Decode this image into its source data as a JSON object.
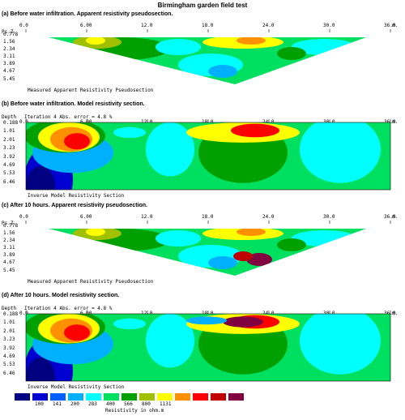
{
  "header": {
    "title": "Birmingham garden field test"
  },
  "axis_units": "m.",
  "x_ticks": [
    "0.0",
    "6.00",
    "12.0",
    "18.0",
    "24.0",
    "30.0",
    "36.0"
  ],
  "panels": [
    {
      "title": "(a) Before water infiltration. Apparent resistivity pseudosection.",
      "ylabel": "Ps.Z",
      "depth_ticks": [
        "0.778",
        "1.56",
        "2.34",
        "3.11",
        "3.89",
        "4.67",
        "5.45"
      ],
      "caption": "Measured Apparent Resistivity Pseudosection",
      "kind": "pseudo"
    },
    {
      "title": "(b) Before water infiltration. Model resistivity section.",
      "ylabel": "Depth",
      "iteration": "Iteration 4 Abs. error = 4.8 %",
      "depth_ticks": [
        "0.188",
        "1.01",
        "2.01",
        "3.23",
        "3.92",
        "4.69",
        "5.53",
        "6.46"
      ],
      "caption": "Inverse Model Resistivity Section",
      "kind": "model"
    },
    {
      "title": "(c) After 10 hours. Apparent resistivity pseudosection.",
      "ylabel": "Ps.Z",
      "depth_ticks": [
        "0.778",
        "1.56",
        "2.34",
        "3.11",
        "3.89",
        "4.67",
        "5.45"
      ],
      "caption": "Measured Apparent Resistivity Pseudosection",
      "kind": "pseudo"
    },
    {
      "title": "(d) After 10 hours. Model resistivity section.",
      "ylabel": "Depth",
      "iteration": "Iteration 4 Abs. error = 4.8 %",
      "depth_ticks": [
        "0.188",
        "1.01",
        "2.01",
        "3.23",
        "3.92",
        "4.69",
        "5.53",
        "6.46"
      ],
      "caption": "Inverse Model Resistivity Section",
      "kind": "model"
    }
  ],
  "legend": {
    "colors": [
      "#000080",
      "#0000d0",
      "#0060ff",
      "#00b0ff",
      "#00ffff",
      "#00e060",
      "#00a000",
      "#a0c000",
      "#ffff00",
      "#ff9000",
      "#ff0000",
      "#c00000",
      "#800040"
    ],
    "labels": [
      "100",
      "141",
      "200",
      "283",
      "400",
      "566",
      "800",
      "1131"
    ],
    "unit": "Resistivity in ohm.m"
  }
}
